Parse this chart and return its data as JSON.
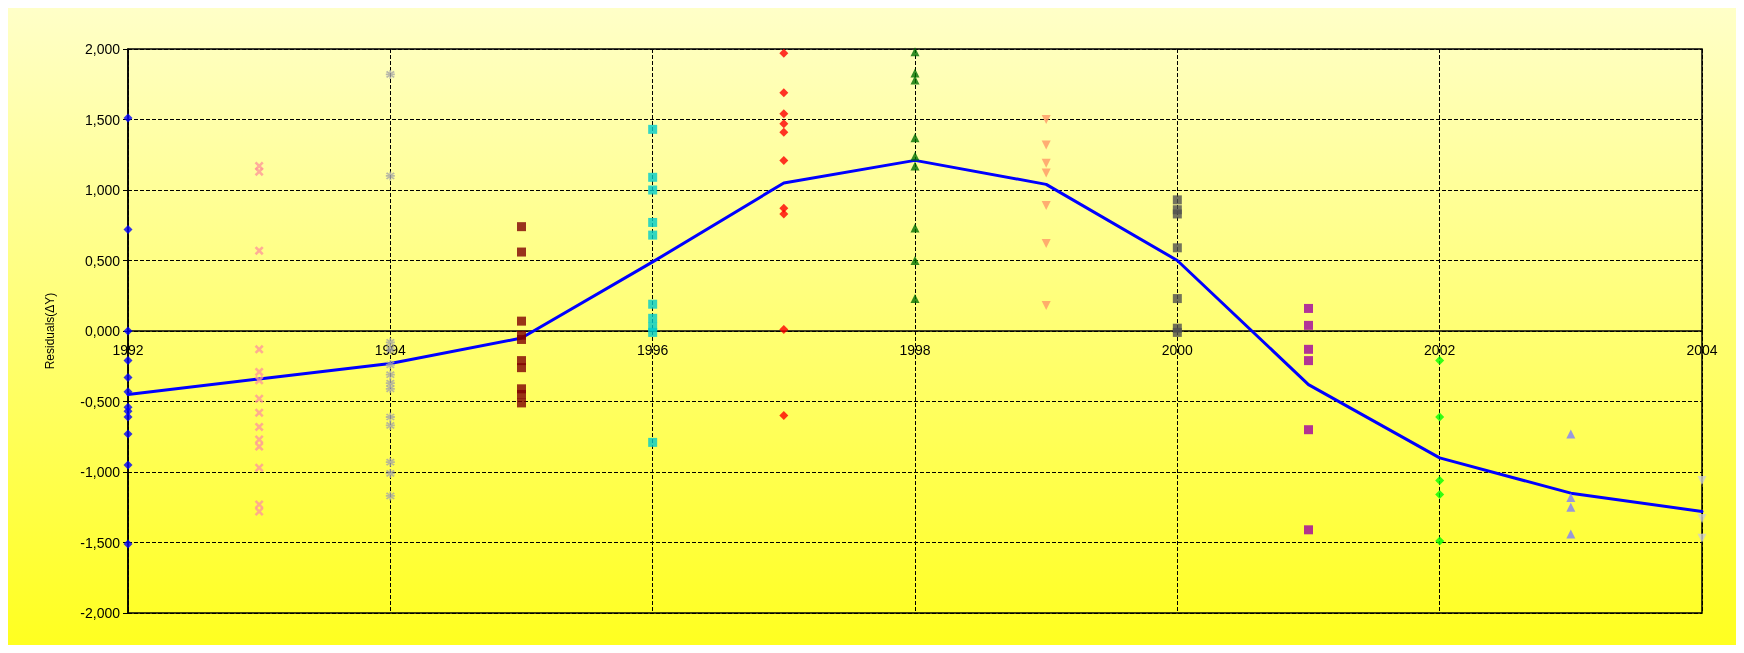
{
  "chart_data": {
    "type": "scatter",
    "ylabel": "Residuals(ΔY)",
    "xlim": [
      1992,
      2004
    ],
    "xticks": [
      1992,
      1994,
      1996,
      1998,
      2000,
      2002,
      2004
    ],
    "ylim": [
      -2,
      2
    ],
    "yticks": [
      {
        "value": -2,
        "label": "-2,000"
      },
      {
        "value": -1.5,
        "label": "-1,500"
      },
      {
        "value": -1,
        "label": "-1,000"
      },
      {
        "value": -0.5,
        "label": "-0,500"
      },
      {
        "value": 0,
        "label": "0,000"
      },
      {
        "value": 0.5,
        "label": "0,500"
      },
      {
        "value": 1,
        "label": "1,000"
      },
      {
        "value": 1.5,
        "label": "1,500"
      },
      {
        "value": 2,
        "label": "2,000"
      }
    ],
    "grid": true,
    "series": [
      {
        "type": "scatter",
        "color": "#0000ff",
        "marker": "diamond",
        "x": [
          1992,
          1992,
          1992,
          1992,
          1992,
          1992,
          1992,
          1992,
          1992,
          1992,
          1992,
          1992
        ],
        "values": [
          1.51,
          0.72,
          0,
          -0.21,
          -0.33,
          -0.43,
          -0.54,
          -0.57,
          -0.61,
          -0.73,
          -0.95,
          -1.51
        ]
      },
      {
        "type": "scatter",
        "color": "#ff9999",
        "marker": "cross",
        "x": [
          1993,
          1993,
          1993,
          1993,
          1993,
          1993,
          1993,
          1993,
          1993,
          1993,
          1993,
          1993,
          1993,
          1993
        ],
        "values": [
          1.17,
          1.13,
          0.57,
          -0.13,
          -0.29,
          -0.35,
          -0.48,
          -0.58,
          -0.68,
          -0.77,
          -0.82,
          -0.97,
          -1.23,
          -1.28
        ]
      },
      {
        "type": "scatter",
        "color": "#a6a6a6",
        "marker": "star",
        "x": [
          1994,
          1994,
          1994,
          1994,
          1994,
          1994,
          1994,
          1994,
          1994,
          1994,
          1994,
          1994,
          1994
        ],
        "values": [
          1.82,
          1.1,
          -0.08,
          -0.13,
          -0.24,
          -0.31,
          -0.37,
          -0.41,
          -0.61,
          -0.67,
          -0.93,
          -1.01,
          -1.17
        ]
      },
      {
        "type": "scatter",
        "color": "#800000",
        "marker": "square",
        "x": [
          1995,
          1995,
          1995,
          1995,
          1995,
          1995,
          1995,
          1995,
          1995,
          1995
        ],
        "values": [
          0.74,
          0.56,
          0.07,
          -0.03,
          -0.06,
          -0.21,
          -0.26,
          -0.41,
          -0.45,
          -0.51
        ]
      },
      {
        "type": "scatter",
        "color": "#00cccc",
        "marker": "square",
        "x": [
          1996,
          1996,
          1996,
          1996,
          1996,
          1996,
          1996,
          1996,
          1996,
          1996
        ],
        "values": [
          1.43,
          1.09,
          1,
          0.77,
          0.68,
          0.19,
          0.09,
          0.03,
          -0.01,
          -0.79
        ]
      },
      {
        "type": "scatter",
        "color": "#ff0000",
        "marker": "diamond",
        "x": [
          1997,
          1997,
          1997,
          1997,
          1997,
          1997,
          1997,
          1997,
          1997,
          1997
        ],
        "values": [
          1.97,
          1.69,
          1.54,
          1.47,
          1.41,
          1.21,
          0.87,
          0.83,
          0.01,
          -0.6
        ]
      },
      {
        "type": "scatter",
        "color": "#007000",
        "marker": "triangle",
        "x": [
          1998,
          1998,
          1998,
          1998,
          1998,
          1998,
          1998,
          1998,
          1998
        ],
        "values": [
          1.98,
          1.83,
          1.78,
          1.37,
          1.24,
          1.17,
          0.73,
          0.5,
          0.23
        ]
      },
      {
        "type": "scatter",
        "color": "#ff9966",
        "marker": "triangle-down",
        "x": [
          1999,
          1999,
          1999,
          1999,
          1999,
          1999,
          1999
        ],
        "values": [
          1.5,
          1.32,
          1.19,
          1.12,
          0.89,
          0.62,
          0.18
        ]
      },
      {
        "type": "scatter",
        "color": "#505050",
        "marker": "square",
        "x": [
          2000,
          2000,
          2000,
          2000,
          2000,
          2000,
          2000
        ],
        "values": [
          0.93,
          0.86,
          0.83,
          0.59,
          0.23,
          0.02,
          -0.01
        ]
      },
      {
        "type": "scatter",
        "color": "#a000a0",
        "marker": "square",
        "x": [
          2001,
          2001,
          2001,
          2001,
          2001,
          2001
        ],
        "values": [
          0.16,
          0.04,
          -0.13,
          -0.21,
          -0.7,
          -1.41
        ]
      },
      {
        "type": "scatter",
        "color": "#00ff00",
        "marker": "diamond",
        "x": [
          2002,
          2002,
          2002,
          2002,
          2002
        ],
        "values": [
          -0.21,
          -0.61,
          -1.06,
          -1.16,
          -1.49
        ]
      },
      {
        "type": "scatter",
        "color": "#8080ff",
        "marker": "triangle",
        "x": [
          2003,
          2003,
          2003,
          2003
        ],
        "values": [
          -0.73,
          -1.18,
          -1.25,
          -1.44
        ]
      },
      {
        "type": "scatter",
        "color": "#d0d0d0",
        "marker": "triangle-down",
        "x": [
          2004,
          2004,
          2004
        ],
        "values": [
          -1.06,
          -1.33,
          -1.47
        ]
      },
      {
        "type": "line",
        "color": "#0000ff",
        "marker": "none",
        "line_style": "solid",
        "x": [
          1992,
          1993,
          1994,
          1995,
          1996,
          1997,
          1998,
          1999,
          2000,
          2001,
          2002,
          2003,
          2004
        ],
        "values": [
          -0.45,
          -0.34,
          -0.23,
          -0.05,
          0.49,
          1.05,
          1.21,
          1.04,
          0.5,
          -0.38,
          -0.9,
          -1.15,
          -1.28
        ]
      }
    ]
  }
}
